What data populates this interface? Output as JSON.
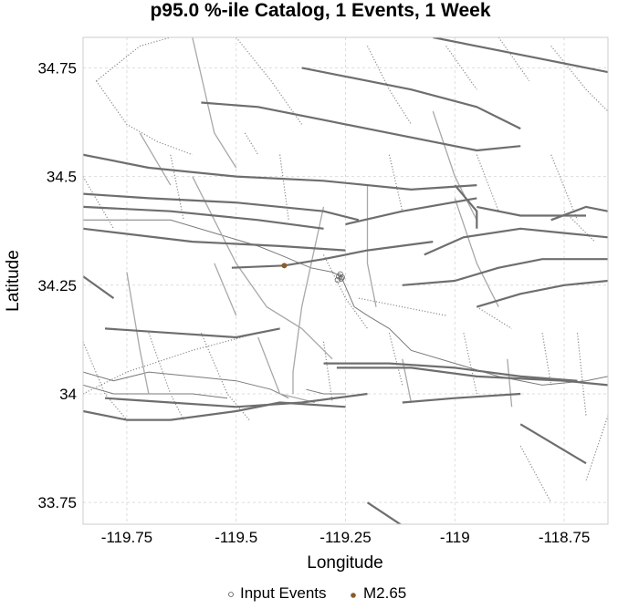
{
  "chart_data": {
    "type": "scatter",
    "title": "p95.0 %-ile Catalog, 1 Events, 1 Week",
    "xlabel": "Longitude",
    "ylabel": "Latitude",
    "xlim": [
      -119.85,
      -118.65
    ],
    "ylim": [
      33.7,
      34.82
    ],
    "grid": true,
    "x_ticks": [
      -119.75,
      -119.5,
      -119.25,
      -119.0,
      -118.75
    ],
    "x_tick_labels": [
      "-119.75",
      "-119.5",
      "-119.25",
      "-119",
      "-118.75"
    ],
    "y_ticks": [
      33.75,
      34.0,
      34.25,
      34.5,
      34.75
    ],
    "y_tick_labels": [
      "33.75",
      "34",
      "34.25",
      "34.5",
      "34.75"
    ],
    "series": [
      {
        "name": "Input Events",
        "marker": "open-circle",
        "points": [
          [
            -119.265,
            34.27
          ],
          [
            -119.26,
            34.265
          ],
          [
            -119.268,
            34.262
          ],
          [
            -119.262,
            34.275
          ],
          [
            -119.258,
            34.268
          ]
        ]
      },
      {
        "name": "M2.65",
        "marker": "filled-circle",
        "points": [
          [
            -119.39,
            34.295
          ]
        ]
      }
    ],
    "legend": {
      "position": "bottom-center",
      "entries": [
        "Input Events",
        "M2.65"
      ]
    },
    "colors": {
      "fault_dark": "#6e6e6e",
      "fault_light": "#a8a8a8",
      "event": "#8b5a2b",
      "grid": "#dddddd",
      "coast": "#7a7a7a"
    },
    "faults_solid": [
      [
        [
          -119.85,
          34.46
        ],
        [
          -119.7,
          34.45
        ],
        [
          -119.5,
          34.44
        ],
        [
          -119.3,
          34.42
        ],
        [
          -119.22,
          34.4
        ]
      ],
      [
        [
          -119.85,
          34.43
        ],
        [
          -119.65,
          34.42
        ],
        [
          -119.45,
          34.4
        ],
        [
          -119.3,
          34.38
        ]
      ],
      [
        [
          -119.85,
          34.38
        ],
        [
          -119.6,
          34.35
        ],
        [
          -119.4,
          34.34
        ],
        [
          -119.25,
          34.33
        ]
      ],
      [
        [
          -119.51,
          34.29
        ],
        [
          -119.39,
          34.295
        ],
        [
          -119.3,
          34.31
        ],
        [
          -119.2,
          34.33
        ],
        [
          -119.05,
          34.35
        ]
      ],
      [
        [
          -119.25,
          34.39
        ],
        [
          -119.12,
          34.42
        ],
        [
          -118.95,
          34.45
        ]
      ],
      [
        [
          -119.07,
          34.32
        ],
        [
          -118.98,
          34.36
        ],
        [
          -118.85,
          34.38
        ],
        [
          -118.75,
          34.37
        ],
        [
          -118.65,
          34.36
        ]
      ],
      [
        [
          -119.12,
          34.25
        ],
        [
          -119.0,
          34.26
        ],
        [
          -118.9,
          34.29
        ],
        [
          -118.8,
          34.31
        ],
        [
          -118.7,
          34.31
        ],
        [
          -118.65,
          34.31
        ]
      ],
      [
        [
          -118.95,
          34.2
        ],
        [
          -118.85,
          34.23
        ],
        [
          -118.75,
          34.25
        ],
        [
          -118.65,
          34.26
        ]
      ],
      [
        [
          -119.85,
          34.55
        ],
        [
          -119.7,
          34.52
        ],
        [
          -119.5,
          34.5
        ],
        [
          -119.3,
          34.49
        ],
        [
          -119.1,
          34.47
        ],
        [
          -118.95,
          34.48
        ]
      ],
      [
        [
          -119.58,
          34.67
        ],
        [
          -119.45,
          34.66
        ],
        [
          -119.3,
          34.63
        ],
        [
          -119.15,
          34.6
        ],
        [
          -118.95,
          34.56
        ],
        [
          -118.85,
          34.57
        ]
      ],
      [
        [
          -119.35,
          34.75
        ],
        [
          -119.25,
          34.73
        ],
        [
          -119.1,
          34.7
        ],
        [
          -118.95,
          34.66
        ],
        [
          -118.85,
          34.61
        ]
      ],
      [
        [
          -119.05,
          34.82
        ],
        [
          -118.85,
          34.78
        ],
        [
          -118.65,
          34.74
        ]
      ],
      [
        [
          -119.85,
          34.27
        ],
        [
          -119.78,
          34.22
        ]
      ],
      [
        [
          -119.8,
          34.15
        ],
        [
          -119.65,
          34.14
        ],
        [
          -119.5,
          34.13
        ],
        [
          -119.4,
          34.15
        ]
      ],
      [
        [
          -119.85,
          33.96
        ],
        [
          -119.75,
          33.94
        ],
        [
          -119.65,
          33.94
        ],
        [
          -119.5,
          33.96
        ],
        [
          -119.4,
          33.98
        ],
        [
          -119.25,
          33.97
        ]
      ],
      [
        [
          -119.8,
          33.99
        ],
        [
          -119.65,
          33.98
        ],
        [
          -119.5,
          33.97
        ],
        [
          -119.35,
          33.98
        ],
        [
          -119.2,
          34.0
        ]
      ],
      [
        [
          -119.3,
          34.07
        ],
        [
          -119.15,
          34.07
        ],
        [
          -119.0,
          34.06
        ],
        [
          -118.85,
          34.04
        ],
        [
          -118.72,
          34.03
        ]
      ],
      [
        [
          -119.27,
          34.06
        ],
        [
          -119.1,
          34.06
        ],
        [
          -118.95,
          34.04
        ],
        [
          -118.75,
          34.03
        ],
        [
          -118.65,
          34.02
        ]
      ],
      [
        [
          -118.85,
          33.93
        ],
        [
          -118.75,
          33.87
        ],
        [
          -118.7,
          33.84
        ]
      ],
      [
        [
          -119.12,
          33.98
        ],
        [
          -119.0,
          33.99
        ],
        [
          -118.85,
          34.0
        ]
      ],
      [
        [
          -119.2,
          33.75
        ],
        [
          -119.05,
          33.65
        ]
      ],
      [
        [
          -118.78,
          34.4
        ],
        [
          -118.7,
          34.43
        ],
        [
          -118.65,
          34.42
        ]
      ],
      [
        [
          -118.95,
          34.43
        ],
        [
          -118.85,
          34.41
        ],
        [
          -118.7,
          34.41
        ]
      ],
      [
        [
          -119.0,
          34.48
        ],
        [
          -118.95,
          34.42
        ],
        [
          -118.95,
          34.38
        ]
      ]
    ],
    "faults_light": [
      [
        [
          -119.6,
          34.82
        ],
        [
          -119.55,
          34.6
        ],
        [
          -119.5,
          34.52
        ]
      ],
      [
        [
          -119.6,
          34.5
        ],
        [
          -119.5,
          34.3
        ],
        [
          -119.43,
          34.2
        ],
        [
          -119.35,
          34.15
        ],
        [
          -119.28,
          34.08
        ]
      ],
      [
        [
          -119.45,
          34.13
        ],
        [
          -119.4,
          34.0
        ],
        [
          -119.32,
          33.98
        ]
      ],
      [
        [
          -119.3,
          34.43
        ],
        [
          -119.35,
          34.2
        ],
        [
          -119.37,
          34.05
        ],
        [
          -119.37,
          34.0
        ]
      ],
      [
        [
          -119.2,
          34.48
        ],
        [
          -119.2,
          34.3
        ],
        [
          -119.18,
          34.2
        ]
      ],
      [
        [
          -119.05,
          34.65
        ],
        [
          -119.0,
          34.5
        ],
        [
          -118.95,
          34.4
        ]
      ],
      [
        [
          -119.55,
          34.3
        ],
        [
          -119.5,
          34.18
        ]
      ],
      [
        [
          -119.0,
          34.45
        ],
        [
          -118.95,
          34.3
        ],
        [
          -118.9,
          34.2
        ]
      ],
      [
        [
          -119.75,
          34.28
        ],
        [
          -119.72,
          34.1
        ],
        [
          -119.7,
          34.0
        ]
      ],
      [
        [
          -119.72,
          34.6
        ],
        [
          -119.65,
          34.48
        ]
      ],
      [
        [
          -119.12,
          34.08
        ],
        [
          -119.1,
          33.98
        ]
      ],
      [
        [
          -118.88,
          34.08
        ],
        [
          -118.87,
          33.97
        ]
      ]
    ],
    "faults_dotted": [
      [
        [
          -119.82,
          34.72
        ],
        [
          -119.72,
          34.8
        ],
        [
          -119.65,
          34.82
        ]
      ],
      [
        [
          -119.82,
          34.72
        ],
        [
          -119.75,
          34.62
        ],
        [
          -119.68,
          34.58
        ],
        [
          -119.6,
          34.55
        ]
      ],
      [
        [
          -119.5,
          34.82
        ],
        [
          -119.42,
          34.72
        ],
        [
          -119.35,
          34.62
        ]
      ],
      [
        [
          -119.2,
          34.8
        ],
        [
          -119.15,
          34.7
        ],
        [
          -119.1,
          34.62
        ]
      ],
      [
        [
          -119.02,
          34.8
        ],
        [
          -118.95,
          34.7
        ]
      ],
      [
        [
          -118.9,
          34.82
        ],
        [
          -118.83,
          34.72
        ]
      ],
      [
        [
          -118.78,
          34.8
        ],
        [
          -118.7,
          34.7
        ],
        [
          -118.65,
          34.65
        ]
      ],
      [
        [
          -119.85,
          34.5
        ],
        [
          -119.78,
          34.38
        ]
      ],
      [
        [
          -119.65,
          34.55
        ],
        [
          -119.62,
          34.4
        ]
      ],
      [
        [
          -119.4,
          34.55
        ],
        [
          -119.38,
          34.4
        ]
      ],
      [
        [
          -119.15,
          34.55
        ],
        [
          -119.12,
          34.42
        ]
      ],
      [
        [
          -118.95,
          34.55
        ],
        [
          -118.9,
          34.42
        ]
      ],
      [
        [
          -118.78,
          34.55
        ],
        [
          -118.72,
          34.4
        ]
      ],
      [
        [
          -119.85,
          34.12
        ],
        [
          -119.8,
          34.0
        ],
        [
          -119.75,
          33.94
        ]
      ],
      [
        [
          -119.7,
          34.14
        ],
        [
          -119.65,
          34.0
        ],
        [
          -119.62,
          33.94
        ]
      ],
      [
        [
          -119.58,
          34.14
        ],
        [
          -119.52,
          34.0
        ],
        [
          -119.47,
          33.94
        ]
      ],
      [
        [
          -119.3,
          34.12
        ],
        [
          -119.28,
          33.98
        ]
      ],
      [
        [
          -119.15,
          34.14
        ],
        [
          -119.12,
          34.02
        ]
      ],
      [
        [
          -118.98,
          34.14
        ],
        [
          -118.95,
          34.0
        ]
      ],
      [
        [
          -118.8,
          34.14
        ],
        [
          -118.78,
          34.02
        ]
      ],
      [
        [
          -118.72,
          34.14
        ],
        [
          -118.7,
          33.95
        ]
      ],
      [
        [
          -118.85,
          33.88
        ],
        [
          -118.78,
          33.75
        ]
      ],
      [
        [
          -118.65,
          33.95
        ],
        [
          -118.7,
          33.8
        ]
      ],
      [
        [
          -119.85,
          34.0
        ],
        [
          -119.75,
          34.05
        ],
        [
          -119.6,
          34.1
        ],
        [
          -119.45,
          34.14
        ]
      ],
      [
        [
          -119.22,
          34.22
        ],
        [
          -119.12,
          34.2
        ],
        [
          -119.02,
          34.18
        ]
      ],
      [
        [
          -119.3,
          34.32
        ],
        [
          -119.25,
          34.22
        ],
        [
          -119.2,
          34.15
        ]
      ],
      [
        [
          -118.95,
          34.2
        ],
        [
          -118.87,
          34.15
        ]
      ],
      [
        [
          -118.75,
          34.42
        ],
        [
          -118.68,
          34.35
        ]
      ],
      [
        [
          -119.48,
          34.6
        ],
        [
          -119.45,
          34.55
        ]
      ]
    ],
    "coastline": [
      [
        [
          -119.85,
          34.4
        ],
        [
          -119.75,
          34.4
        ],
        [
          -119.65,
          34.4
        ],
        [
          -119.55,
          34.37
        ],
        [
          -119.45,
          34.34
        ],
        [
          -119.4,
          34.32
        ],
        [
          -119.33,
          34.29
        ],
        [
          -119.28,
          34.28
        ],
        [
          -119.26,
          34.27
        ],
        [
          -119.23,
          34.2
        ],
        [
          -119.2,
          34.18
        ],
        [
          -119.15,
          34.15
        ],
        [
          -119.1,
          34.1
        ],
        [
          -119.0,
          34.07
        ],
        [
          -118.9,
          34.04
        ],
        [
          -118.8,
          34.02
        ],
        [
          -118.7,
          34.03
        ],
        [
          -118.65,
          34.04
        ]
      ],
      [
        [
          -119.85,
          34.05
        ],
        [
          -119.78,
          34.03
        ],
        [
          -119.7,
          34.05
        ],
        [
          -119.6,
          34.04
        ],
        [
          -119.5,
          34.03
        ],
        [
          -119.42,
          34.01
        ],
        [
          -119.38,
          33.99
        ]
      ],
      [
        [
          -119.85,
          34.02
        ],
        [
          -119.78,
          34.0
        ],
        [
          -119.7,
          34.0
        ],
        [
          -119.6,
          34.0
        ],
        [
          -119.52,
          33.99
        ]
      ],
      [
        [
          -119.34,
          34.01
        ],
        [
          -119.3,
          34.0
        ],
        [
          -119.25,
          34.0
        ]
      ]
    ]
  }
}
